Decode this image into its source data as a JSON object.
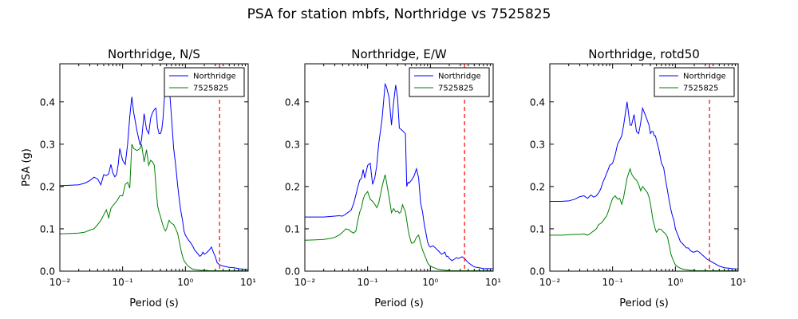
{
  "figure": {
    "suptitle": "PSA for station mbfs, Northridge vs 7525825"
  },
  "chart_data": [
    {
      "type": "line",
      "title": "Northridge, N/S",
      "xlabel": "Period (s)",
      "ylabel": "PSA (g)",
      "xscale": "log",
      "xlim": [
        0.01,
        10
      ],
      "ylim": [
        0,
        0.49
      ],
      "xticks": [
        0.01,
        0.1,
        1,
        10
      ],
      "xtick_labels": [
        "10⁻²",
        "10⁻¹",
        "10⁰",
        "10¹"
      ],
      "yticks": [
        0,
        0.1,
        0.2,
        0.3,
        0.4
      ],
      "ytick_labels": [
        "0.0",
        "0.1",
        "0.2",
        "0.3",
        "0.4"
      ],
      "grid": false,
      "legend_position": "top-right",
      "vline": {
        "x": 3.5,
        "color": "#ff0000",
        "style": "dashed"
      },
      "series": [
        {
          "name": "Northridge",
          "color": "#0000ff",
          "x": [
            0.01,
            0.015,
            0.02,
            0.025,
            0.03,
            0.035,
            0.04,
            0.045,
            0.05,
            0.055,
            0.06,
            0.065,
            0.07,
            0.075,
            0.08,
            0.085,
            0.09,
            0.1,
            0.11,
            0.12,
            0.13,
            0.14,
            0.15,
            0.17,
            0.19,
            0.2,
            0.22,
            0.24,
            0.26,
            0.28,
            0.3,
            0.32,
            0.34,
            0.36,
            0.38,
            0.4,
            0.42,
            0.44,
            0.46,
            0.48,
            0.5,
            0.55,
            0.6,
            0.65,
            0.7,
            0.75,
            0.8,
            0.85,
            0.9,
            0.95,
            1.0,
            1.1,
            1.2,
            1.3,
            1.4,
            1.5,
            1.6,
            1.7,
            1.8,
            1.9,
            2.0,
            2.2,
            2.4,
            2.6,
            2.8,
            3.0,
            3.2,
            3.5,
            4.0,
            5.0,
            6.0,
            7.0,
            8.0,
            10.0
          ],
          "values": [
            0.202,
            0.203,
            0.204,
            0.208,
            0.214,
            0.222,
            0.218,
            0.204,
            0.228,
            0.226,
            0.23,
            0.252,
            0.232,
            0.223,
            0.228,
            0.252,
            0.29,
            0.262,
            0.252,
            0.3,
            0.365,
            0.412,
            0.375,
            0.33,
            0.298,
            0.31,
            0.372,
            0.335,
            0.325,
            0.362,
            0.375,
            0.382,
            0.385,
            0.34,
            0.325,
            0.325,
            0.335,
            0.36,
            0.405,
            0.43,
            0.455,
            0.44,
            0.365,
            0.29,
            0.25,
            0.205,
            0.168,
            0.14,
            0.12,
            0.095,
            0.085,
            0.075,
            0.068,
            0.06,
            0.05,
            0.045,
            0.04,
            0.035,
            0.038,
            0.045,
            0.04,
            0.044,
            0.05,
            0.057,
            0.044,
            0.034,
            0.02,
            0.015,
            0.012,
            0.009,
            0.008,
            0.006,
            0.005,
            0.004
          ]
        },
        {
          "name": "7525825",
          "color": "#008000",
          "x": [
            0.01,
            0.015,
            0.02,
            0.025,
            0.03,
            0.035,
            0.04,
            0.045,
            0.05,
            0.055,
            0.06,
            0.065,
            0.07,
            0.075,
            0.08,
            0.085,
            0.09,
            0.1,
            0.11,
            0.12,
            0.13,
            0.14,
            0.15,
            0.17,
            0.19,
            0.2,
            0.22,
            0.24,
            0.26,
            0.28,
            0.3,
            0.32,
            0.34,
            0.36,
            0.38,
            0.4,
            0.42,
            0.44,
            0.46,
            0.48,
            0.5,
            0.55,
            0.6,
            0.65,
            0.7,
            0.75,
            0.8,
            0.85,
            0.9,
            0.95,
            1.0,
            1.1,
            1.2,
            1.3,
            1.4,
            1.5,
            1.6,
            1.7,
            1.8,
            1.9,
            2.0,
            2.2,
            2.4,
            2.6,
            2.8,
            3.0,
            3.2,
            3.5,
            4.0,
            5.0,
            6.0,
            7.0,
            8.0,
            10.0
          ],
          "values": [
            0.088,
            0.089,
            0.09,
            0.092,
            0.097,
            0.1,
            0.11,
            0.12,
            0.133,
            0.145,
            0.126,
            0.148,
            0.155,
            0.16,
            0.165,
            0.171,
            0.178,
            0.178,
            0.205,
            0.21,
            0.196,
            0.3,
            0.29,
            0.285,
            0.29,
            0.3,
            0.258,
            0.287,
            0.25,
            0.262,
            0.258,
            0.25,
            0.2,
            0.155,
            0.14,
            0.13,
            0.118,
            0.108,
            0.1,
            0.095,
            0.1,
            0.12,
            0.113,
            0.11,
            0.1,
            0.09,
            0.07,
            0.05,
            0.035,
            0.025,
            0.02,
            0.012,
            0.008,
            0.005,
            0.004,
            0.003,
            0.003,
            0.002,
            0.002,
            0.002,
            0.002,
            0.002,
            0.001,
            0.001,
            0.001,
            0.001,
            0.001,
            0.001,
            0.001,
            0.001,
            0.001,
            0.001,
            0.001,
            0.001
          ]
        }
      ]
    },
    {
      "type": "line",
      "title": "Northridge, E/W",
      "xlabel": "Period (s)",
      "ylabel": "",
      "xscale": "log",
      "xlim": [
        0.01,
        10
      ],
      "ylim": [
        0,
        0.49
      ],
      "xticks": [
        0.01,
        0.1,
        1,
        10
      ],
      "xtick_labels": [
        "10⁻²",
        "10⁻¹",
        "10⁰",
        "10¹"
      ],
      "yticks": [
        0,
        0.1,
        0.2,
        0.3,
        0.4
      ],
      "ytick_labels": [
        "0.0",
        "0.1",
        "0.2",
        "0.3",
        "0.4"
      ],
      "grid": false,
      "legend_position": "top-right",
      "vline": {
        "x": 3.5,
        "color": "#ff0000",
        "style": "dashed"
      },
      "series": [
        {
          "name": "Northridge",
          "color": "#0000ff",
          "x": [
            0.01,
            0.015,
            0.02,
            0.025,
            0.03,
            0.035,
            0.04,
            0.045,
            0.05,
            0.055,
            0.06,
            0.065,
            0.07,
            0.075,
            0.08,
            0.085,
            0.09,
            0.1,
            0.11,
            0.12,
            0.13,
            0.14,
            0.15,
            0.17,
            0.19,
            0.2,
            0.22,
            0.24,
            0.26,
            0.28,
            0.3,
            0.32,
            0.34,
            0.36,
            0.38,
            0.4,
            0.42,
            0.44,
            0.46,
            0.48,
            0.5,
            0.55,
            0.6,
            0.65,
            0.7,
            0.75,
            0.8,
            0.85,
            0.9,
            0.95,
            1.0,
            1.1,
            1.2,
            1.3,
            1.4,
            1.5,
            1.6,
            1.7,
            1.8,
            1.9,
            2.0,
            2.2,
            2.4,
            2.6,
            2.8,
            3.0,
            3.2,
            3.5,
            4.0,
            5.0,
            6.0,
            7.0,
            8.0,
            10.0
          ],
          "values": [
            0.128,
            0.128,
            0.128,
            0.129,
            0.13,
            0.131,
            0.13,
            0.135,
            0.14,
            0.145,
            0.16,
            0.18,
            0.2,
            0.215,
            0.22,
            0.24,
            0.22,
            0.25,
            0.255,
            0.205,
            0.22,
            0.25,
            0.3,
            0.36,
            0.442,
            0.435,
            0.41,
            0.345,
            0.4,
            0.44,
            0.41,
            0.338,
            0.335,
            0.332,
            0.328,
            0.325,
            0.2,
            0.21,
            0.208,
            0.212,
            0.215,
            0.225,
            0.242,
            0.22,
            0.16,
            0.14,
            0.11,
            0.09,
            0.07,
            0.06,
            0.057,
            0.06,
            0.055,
            0.05,
            0.045,
            0.04,
            0.042,
            0.045,
            0.035,
            0.035,
            0.03,
            0.025,
            0.028,
            0.032,
            0.03,
            0.032,
            0.034,
            0.03,
            0.02,
            0.01,
            0.008,
            0.006,
            0.006,
            0.006
          ]
        },
        {
          "name": "7525825",
          "color": "#008000",
          "x": [
            0.01,
            0.015,
            0.02,
            0.025,
            0.03,
            0.035,
            0.04,
            0.045,
            0.05,
            0.055,
            0.06,
            0.065,
            0.07,
            0.075,
            0.08,
            0.085,
            0.09,
            0.1,
            0.11,
            0.12,
            0.13,
            0.14,
            0.15,
            0.17,
            0.19,
            0.2,
            0.22,
            0.24,
            0.26,
            0.28,
            0.3,
            0.32,
            0.34,
            0.36,
            0.38,
            0.4,
            0.42,
            0.44,
            0.46,
            0.48,
            0.5,
            0.55,
            0.6,
            0.65,
            0.7,
            0.75,
            0.8,
            0.85,
            0.9,
            0.95,
            1.0,
            1.1,
            1.2,
            1.3,
            1.4,
            1.5,
            1.6,
            1.7,
            1.8,
            1.9,
            2.0,
            2.2,
            2.4,
            2.6,
            2.8,
            3.0,
            3.2,
            3.5,
            4.0,
            5.0,
            6.0,
            7.0,
            8.0,
            10.0
          ],
          "values": [
            0.073,
            0.074,
            0.075,
            0.077,
            0.08,
            0.085,
            0.092,
            0.1,
            0.098,
            0.093,
            0.09,
            0.095,
            0.12,
            0.14,
            0.15,
            0.17,
            0.18,
            0.188,
            0.17,
            0.165,
            0.158,
            0.15,
            0.16,
            0.2,
            0.228,
            0.21,
            0.175,
            0.138,
            0.148,
            0.14,
            0.142,
            0.137,
            0.14,
            0.157,
            0.148,
            0.14,
            0.12,
            0.1,
            0.085,
            0.075,
            0.066,
            0.068,
            0.08,
            0.085,
            0.065,
            0.05,
            0.04,
            0.03,
            0.02,
            0.015,
            0.012,
            0.009,
            0.007,
            0.005,
            0.004,
            0.003,
            0.003,
            0.002,
            0.002,
            0.002,
            0.002,
            0.001,
            0.001,
            0.001,
            0.001,
            0.001,
            0.001,
            0.001,
            0.001,
            0.001,
            0.001,
            0.001,
            0.001,
            0.001
          ]
        }
      ]
    },
    {
      "type": "line",
      "title": "Northridge, rotd50",
      "xlabel": "Period (s)",
      "ylabel": "",
      "xscale": "log",
      "xlim": [
        0.01,
        10
      ],
      "ylim": [
        0,
        0.49
      ],
      "xticks": [
        0.01,
        0.1,
        1,
        10
      ],
      "xtick_labels": [
        "10⁻²",
        "10⁻¹",
        "10⁰",
        "10¹"
      ],
      "yticks": [
        0,
        0.1,
        0.2,
        0.3,
        0.4
      ],
      "ytick_labels": [
        "0.0",
        "0.1",
        "0.2",
        "0.3",
        "0.4"
      ],
      "grid": false,
      "legend_position": "top-right",
      "vline": {
        "x": 3.5,
        "color": "#ff0000",
        "style": "dashed"
      },
      "series": [
        {
          "name": "Northridge",
          "color": "#0000ff",
          "x": [
            0.01,
            0.015,
            0.02,
            0.025,
            0.03,
            0.035,
            0.04,
            0.045,
            0.05,
            0.055,
            0.06,
            0.065,
            0.07,
            0.075,
            0.08,
            0.085,
            0.09,
            0.1,
            0.11,
            0.12,
            0.13,
            0.14,
            0.15,
            0.17,
            0.19,
            0.2,
            0.22,
            0.24,
            0.26,
            0.28,
            0.3,
            0.32,
            0.34,
            0.36,
            0.38,
            0.4,
            0.42,
            0.44,
            0.46,
            0.48,
            0.5,
            0.55,
            0.6,
            0.65,
            0.7,
            0.75,
            0.8,
            0.85,
            0.9,
            0.95,
            1.0,
            1.1,
            1.2,
            1.3,
            1.4,
            1.5,
            1.6,
            1.7,
            1.8,
            1.9,
            2.0,
            2.2,
            2.4,
            2.6,
            2.8,
            3.0,
            3.2,
            3.5,
            4.0,
            5.0,
            6.0,
            7.0,
            8.0,
            10.0
          ],
          "values": [
            0.165,
            0.165,
            0.166,
            0.17,
            0.176,
            0.178,
            0.172,
            0.18,
            0.175,
            0.178,
            0.185,
            0.195,
            0.21,
            0.22,
            0.23,
            0.24,
            0.25,
            0.255,
            0.275,
            0.3,
            0.31,
            0.32,
            0.345,
            0.4,
            0.345,
            0.345,
            0.37,
            0.33,
            0.325,
            0.35,
            0.385,
            0.375,
            0.365,
            0.355,
            0.345,
            0.325,
            0.33,
            0.33,
            0.32,
            0.32,
            0.31,
            0.285,
            0.255,
            0.245,
            0.215,
            0.19,
            0.165,
            0.145,
            0.13,
            0.12,
            0.1,
            0.085,
            0.07,
            0.065,
            0.06,
            0.055,
            0.055,
            0.05,
            0.047,
            0.045,
            0.045,
            0.048,
            0.045,
            0.04,
            0.036,
            0.032,
            0.028,
            0.025,
            0.02,
            0.012,
            0.008,
            0.007,
            0.006,
            0.005
          ]
        },
        {
          "name": "7525825",
          "color": "#008000",
          "x": [
            0.01,
            0.015,
            0.02,
            0.025,
            0.03,
            0.035,
            0.04,
            0.045,
            0.05,
            0.055,
            0.06,
            0.065,
            0.07,
            0.075,
            0.08,
            0.085,
            0.09,
            0.1,
            0.11,
            0.12,
            0.13,
            0.14,
            0.15,
            0.17,
            0.19,
            0.2,
            0.22,
            0.24,
            0.26,
            0.28,
            0.3,
            0.32,
            0.34,
            0.36,
            0.38,
            0.4,
            0.42,
            0.44,
            0.46,
            0.48,
            0.5,
            0.55,
            0.6,
            0.65,
            0.7,
            0.75,
            0.8,
            0.85,
            0.9,
            0.95,
            1.0,
            1.1,
            1.2,
            1.3,
            1.4,
            1.5,
            1.6,
            1.7,
            1.8,
            1.9,
            2.0,
            2.2,
            2.4,
            2.6,
            2.8,
            3.0,
            3.2,
            3.5,
            4.0,
            5.0,
            6.0,
            7.0,
            8.0,
            10.0
          ],
          "values": [
            0.085,
            0.085,
            0.086,
            0.087,
            0.087,
            0.088,
            0.085,
            0.09,
            0.095,
            0.1,
            0.11,
            0.113,
            0.118,
            0.125,
            0.13,
            0.14,
            0.152,
            0.172,
            0.178,
            0.17,
            0.172,
            0.158,
            0.175,
            0.22,
            0.242,
            0.23,
            0.22,
            0.215,
            0.205,
            0.19,
            0.2,
            0.195,
            0.19,
            0.185,
            0.175,
            0.16,
            0.14,
            0.12,
            0.11,
            0.098,
            0.092,
            0.1,
            0.098,
            0.092,
            0.088,
            0.08,
            0.06,
            0.04,
            0.03,
            0.022,
            0.015,
            0.01,
            0.007,
            0.005,
            0.004,
            0.003,
            0.003,
            0.002,
            0.002,
            0.002,
            0.002,
            0.001,
            0.001,
            0.001,
            0.001,
            0.001,
            0.001,
            0.001,
            0.001,
            0.001,
            0.001,
            0.001,
            0.001,
            0.001
          ]
        }
      ]
    }
  ]
}
